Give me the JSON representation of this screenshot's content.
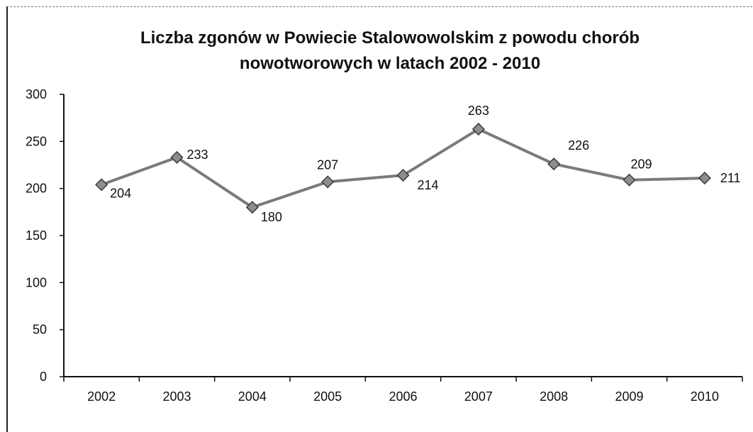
{
  "chart_data": {
    "type": "line",
    "title": "Liczba zgonów w Powiecie Stalowowolskim z powodu chorób nowotworowych  w latach 2002 - 2010",
    "xlabel": "",
    "ylabel": "",
    "categories": [
      "2002",
      "2003",
      "2004",
      "2005",
      "2006",
      "2007",
      "2008",
      "2009",
      "2010"
    ],
    "series": [
      {
        "values": [
          204,
          233,
          180,
          207,
          214,
          263,
          226,
          209,
          211
        ]
      }
    ],
    "ylim": [
      0,
      300
    ],
    "yticks": [
      0,
      50,
      100,
      150,
      200,
      250,
      300
    ],
    "grid": false,
    "legend": "none",
    "line_color": "#7a7a7a",
    "marker_color": "#8d8d8d",
    "marker": "diamond"
  }
}
